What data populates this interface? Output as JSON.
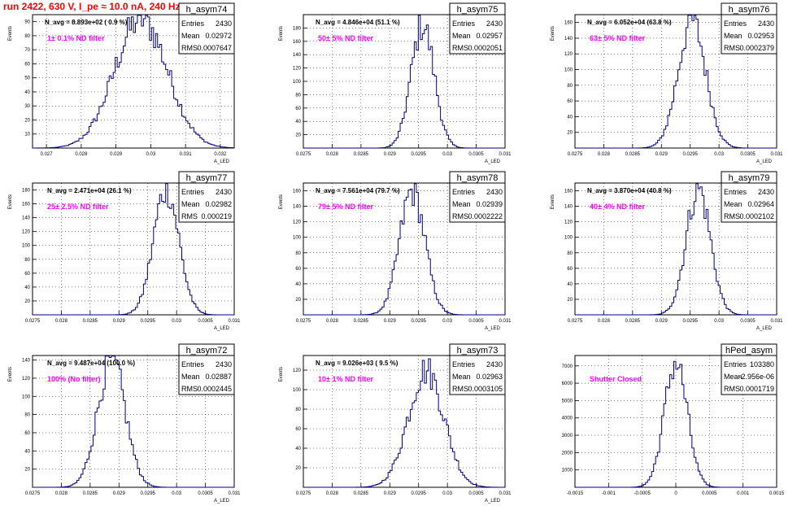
{
  "page": {
    "title": "run 2422,   630 V, I_pe ≈ 10.0 nA, 240 Hz"
  },
  "chart_data": [
    {
      "type": "bar",
      "name": "h_asym74",
      "stats": {
        "entries_label": "Entries",
        "entries": "2430",
        "mean_label": "Mean",
        "mean": "0.02972",
        "rms_label": "RMS",
        "rms": "0.0007647"
      },
      "navg": "N_avg = 8.893e+02 ( 0.9 %)",
      "filter": "1± 0.1% ND filter",
      "xlabel": "A_LED",
      "ylabel": "Events",
      "xlim": [
        0.0266,
        0.0324
      ],
      "ylim": [
        0,
        95
      ],
      "xticks": [
        "0.027",
        "0.028",
        "0.029",
        "0.03",
        "0.031",
        "0.032"
      ],
      "yticks": [
        "10",
        "20",
        "30",
        "40",
        "50",
        "60",
        "70",
        "80",
        "90"
      ],
      "mean_value": 0.02972,
      "sigma": 0.00076,
      "peak": 92
    },
    {
      "type": "bar",
      "name": "h_asym75",
      "stats": {
        "entries_label": "Entries",
        "entries": "2430",
        "mean_label": "Mean",
        "mean": "0.02957",
        "rms_label": "RMS",
        "rms": "0.0002051"
      },
      "navg": "N_avg = 4.846e+04 (51.1 %)",
      "filter": "50± 5% ND filter",
      "xlabel": "A_LED",
      "ylabel": "Events",
      "xlim": [
        0.0275,
        0.031
      ],
      "ylim": [
        0,
        200
      ],
      "xticks": [
        "0.0275",
        "0.028",
        "0.0285",
        "0.029",
        "0.0295",
        "0.03",
        "0.0305",
        "0.031"
      ],
      "yticks": [
        "20",
        "40",
        "60",
        "80",
        "100",
        "120",
        "140",
        "160",
        "180"
      ],
      "mean_value": 0.02957,
      "sigma": 0.0002,
      "peak": 185
    },
    {
      "type": "bar",
      "name": "h_asym76",
      "stats": {
        "entries_label": "Entries",
        "entries": "2430",
        "mean_label": "Mean",
        "mean": "0.02953",
        "rms_label": "RMS",
        "rms": "0.0002379"
      },
      "navg": "N_avg = 6.052e+04 (63.8 %)",
      "filter": "63± 5% ND filter",
      "xlabel": "A_LED",
      "ylabel": "Events",
      "xlim": [
        0.0275,
        0.031
      ],
      "ylim": [
        0,
        170
      ],
      "xticks": [
        "0.0275",
        "0.028",
        "0.0285",
        "0.029",
        "0.0295",
        "0.03",
        "0.0305",
        "0.031"
      ],
      "yticks": [
        "20",
        "40",
        "60",
        "80",
        "100",
        "120",
        "140",
        "160"
      ],
      "mean_value": 0.02953,
      "sigma": 0.00024,
      "peak": 162
    },
    {
      "type": "bar",
      "name": "h_asym77",
      "stats": {
        "entries_label": "Entries",
        "entries": "2430",
        "mean_label": "Mean",
        "mean": "0.02982",
        "rms_label": "RMS",
        "rms": "0.000219"
      },
      "navg": "N_avg = 2.471e+04 (26.1 %)",
      "filter": "25± 2.5% ND filter",
      "xlabel": "A_LED",
      "ylabel": "Events",
      "xlim": [
        0.0275,
        0.031
      ],
      "ylim": [
        0,
        190
      ],
      "xticks": [
        "0.0275",
        "0.028",
        "0.0285",
        "0.029",
        "0.0295",
        "0.03",
        "0.0305",
        "0.031"
      ],
      "yticks": [
        "20",
        "40",
        "60",
        "80",
        "100",
        "120",
        "140",
        "160",
        "180"
      ],
      "mean_value": 0.02982,
      "sigma": 0.00022,
      "peak": 182
    },
    {
      "type": "bar",
      "name": "h_asym78",
      "stats": {
        "entries_label": "Entries",
        "entries": "2430",
        "mean_label": "Mean",
        "mean": "0.02939",
        "rms_label": "RMS",
        "rms": "0.0002222"
      },
      "navg": "N_avg = 7.561e+04 (79.7 %)",
      "filter": "79± 5% ND filter",
      "xlabel": "A_LED",
      "ylabel": "Events",
      "xlim": [
        0.0275,
        0.031
      ],
      "ylim": [
        0,
        170
      ],
      "xticks": [
        "0.0275",
        "0.028",
        "0.0285",
        "0.029",
        "0.0295",
        "0.03",
        "0.0305",
        "0.031"
      ],
      "yticks": [
        "20",
        "40",
        "60",
        "80",
        "100",
        "120",
        "140",
        "160"
      ],
      "mean_value": 0.02939,
      "sigma": 0.00022,
      "peak": 160
    },
    {
      "type": "bar",
      "name": "h_asym79",
      "stats": {
        "entries_label": "Entries",
        "entries": "2430",
        "mean_label": "Mean",
        "mean": "0.02964",
        "rms_label": "RMS",
        "rms": "0.0002102"
      },
      "navg": "N_avg = 3.870e+04 (40.8 %)",
      "filter": "40± 4% ND filter",
      "xlabel": "A_LED",
      "ylabel": "Events",
      "xlim": [
        0.0275,
        0.031
      ],
      "ylim": [
        0,
        170
      ],
      "xticks": [
        "0.0275",
        "0.028",
        "0.0285",
        "0.029",
        "0.0295",
        "0.03",
        "0.0305",
        "0.031"
      ],
      "yticks": [
        "20",
        "40",
        "60",
        "80",
        "100",
        "120",
        "140",
        "160"
      ],
      "mean_value": 0.02964,
      "sigma": 0.00021,
      "peak": 163
    },
    {
      "type": "bar",
      "name": "h_asym72",
      "stats": {
        "entries_label": "Entries",
        "entries": "2430",
        "mean_label": "Mean",
        "mean": "0.02887",
        "rms_label": "RMS",
        "rms": "0.0002445"
      },
      "navg": "N_avg = 9.487e+04 (100.0 %)",
      "filter": "100% (No filter)",
      "xlabel": "A_LED",
      "ylabel": "Events",
      "xlim": [
        0.0275,
        0.031
      ],
      "ylim": [
        0,
        145
      ],
      "xticks": [
        "0.0275",
        "0.028",
        "0.0285",
        "0.029",
        "0.0295",
        "0.03",
        "0.0305",
        "0.031"
      ],
      "yticks": [
        "20",
        "40",
        "60",
        "80",
        "100",
        "120",
        "140"
      ],
      "mean_value": 0.02887,
      "sigma": 0.00024,
      "peak": 140
    },
    {
      "type": "bar",
      "name": "h_asym73",
      "stats": {
        "entries_label": "Entries",
        "entries": "2430",
        "mean_label": "Mean",
        "mean": "0.02963",
        "rms_label": "RMS",
        "rms": "0.0003105"
      },
      "navg": "N_avg = 9.026e+03 ( 9.5 %)",
      "filter": "10± 1% ND filter",
      "xlabel": "A_LED",
      "ylabel": "Events",
      "xlim": [
        0.0275,
        0.031
      ],
      "ylim": [
        0,
        135
      ],
      "xticks": [
        "0.0275",
        "0.028",
        "0.0285",
        "0.029",
        "0.0295",
        "0.03",
        "0.0305",
        "0.031"
      ],
      "yticks": [
        "20",
        "40",
        "60",
        "80",
        "100",
        "120"
      ],
      "mean_value": 0.02963,
      "sigma": 0.00031,
      "peak": 120
    },
    {
      "type": "bar",
      "name": "hPed_asym",
      "stats": {
        "entries_label": "Entries",
        "entries": "103380",
        "mean_label": "Mean",
        "mean": "-2.956e-06",
        "rms_label": "RMS",
        "rms": "0.0001719"
      },
      "navg": "",
      "filter": "Shutter Closed",
      "xlabel": "",
      "ylabel": "",
      "xlim": [
        -0.0015,
        0.0015
      ],
      "ylim": [
        0,
        7600
      ],
      "xticks": [
        "-0.0015",
        "-0.001",
        "-0.0005",
        "0",
        "0.0005",
        "0.001",
        "0.0015"
      ],
      "yticks": [
        "1000",
        "2000",
        "3000",
        "4000",
        "5000",
        "6000",
        "7000"
      ],
      "mean_value": 0.0,
      "sigma": 0.00017,
      "peak": 7200
    }
  ],
  "colors": {
    "histogram": "#000080",
    "title": "#ff0000",
    "filter_label": "#ff00ff",
    "grid": "#000000"
  }
}
